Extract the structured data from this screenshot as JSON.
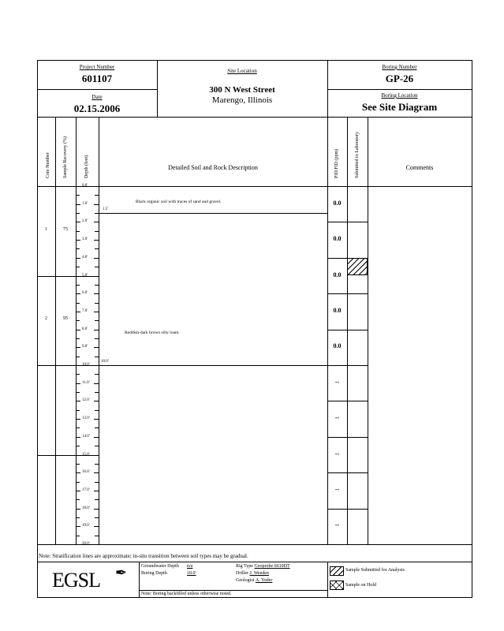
{
  "header": {
    "project_number_label": "Project Number",
    "project_number": "601107",
    "date_label": "Date",
    "date": "02.15.2006",
    "site_location_label": "Site Location",
    "site_line1": "300 N West Street",
    "site_line2": "Marengo, Illinois",
    "boring_number_label": "Boring Number",
    "boring_number": "GP-26",
    "boring_location_label": "Boring Location",
    "boring_location": "See Site Diagram"
  },
  "columns": {
    "core": "Core Number",
    "recovery": "Sample Recovery (%)",
    "depth": "Depth (feet)",
    "description": "Detailed Soil and Rock Description",
    "pid": "PID/FID (ppm)",
    "submitted": "Submitted to Laboratory",
    "comments": "Comments"
  },
  "depth_ticks": [
    "0.0'",
    "1.0'",
    "2.0'",
    "3.0'",
    "4.0'",
    "5.0'",
    "6.0'",
    "7.0'",
    "8.0'",
    "9.0'",
    "10.0'",
    "11.0'",
    "12.0'",
    "13.0'",
    "14.0'",
    "15.0'",
    "16.0'",
    "17.0'",
    "18.0'",
    "19.0'",
    "20.0'"
  ],
  "cores": [
    {
      "number": "1",
      "recovery": "75"
    },
    {
      "number": "2",
      "recovery": "95"
    }
  ],
  "strata": [
    {
      "depth_label": "1.5'",
      "description": "Black organic soil with traces of sand and gravel."
    },
    {
      "depth_label": "10.0'",
      "description": "Reddish-dark brown silty loam."
    }
  ],
  "pid_readings": [
    "0.0",
    "0.0",
    "0.0",
    "0.0",
    "0.0",
    "--",
    "--",
    "--",
    "--",
    "--"
  ],
  "submitted_sample_depth_ft": [
    4,
    5
  ],
  "note": "Note:  Stratification lines are approximate; in-situ transition between soil types may be gradual.",
  "footer": {
    "logo": "EGSL",
    "groundwater_label": "Groundwater Depth",
    "groundwater": "n/a",
    "boring_depth_label": "Boring Depth",
    "boring_depth": "10.0'",
    "rig_label": "Rig Type",
    "rig": "Geoprobe 6610DT",
    "driller_label": "Driller",
    "driller": "J. Weeden",
    "geologist_label": "Geologist",
    "geologist": "A. Yoder",
    "backfill_note": "Note: Boring backfilled unless otherwise noted.",
    "legend_submitted": "Sample Submitted for Analysis",
    "legend_hold": "Sample on Hold"
  }
}
